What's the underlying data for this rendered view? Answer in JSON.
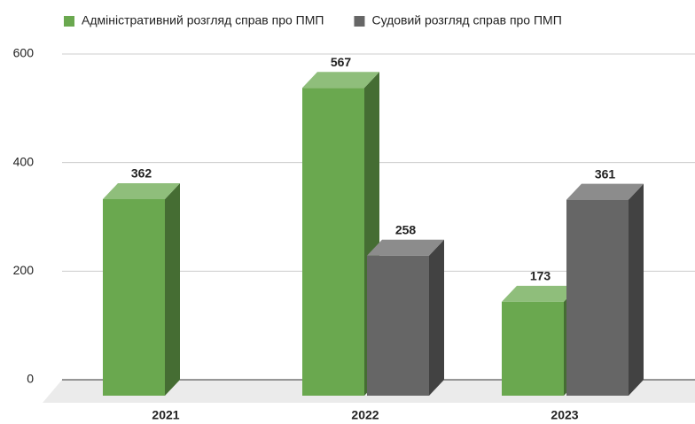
{
  "chart_data": {
    "type": "bar3d",
    "categories": [
      "2021",
      "2022",
      "2023"
    ],
    "series": [
      {
        "name": "Адміністративний розгляд справ про ПМП",
        "color": "#6aa84f",
        "values": [
          362,
          567,
          173
        ]
      },
      {
        "name": "Судовий розгляд справ про ПМП",
        "color": "#666666",
        "values": [
          null,
          258,
          361
        ]
      }
    ],
    "ylim": [
      0,
      600
    ],
    "yticks": [
      0,
      200,
      400,
      600
    ],
    "grid": true,
    "legend": "top"
  }
}
